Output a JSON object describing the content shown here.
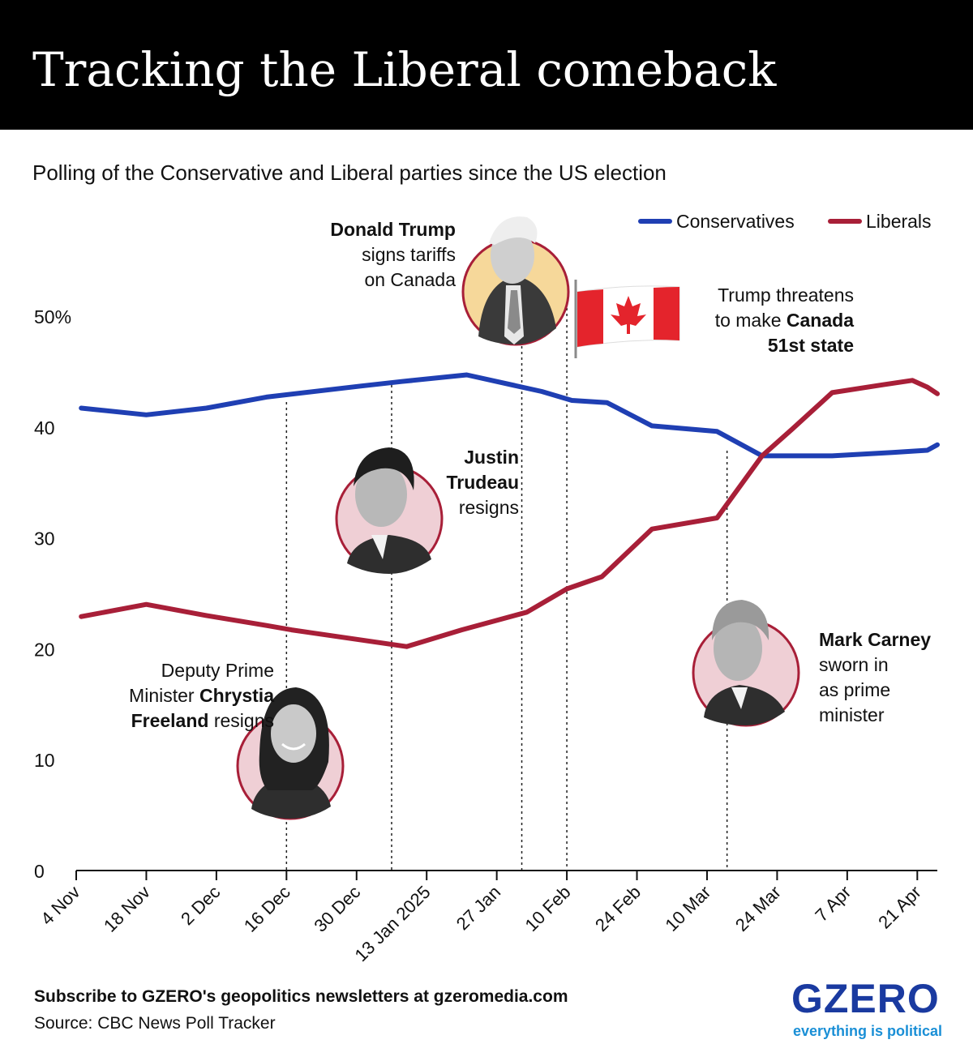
{
  "header": {
    "title": "Tracking the Liberal comeback",
    "subtitle": "Polling of the Conservative and Liberal parties since the US election"
  },
  "footer": {
    "subscribe": "Subscribe to GZERO's geopolitics newsletters at gzeromedia.com",
    "source": "Source: CBC News Poll Tracker"
  },
  "logo": {
    "word": "GZERO",
    "tagline": "everything is political"
  },
  "colors": {
    "conservatives": "#1f3fb3",
    "liberals": "#a81f38",
    "trump_circle": "#f6d89a",
    "pink_circle": "#efcfd5",
    "ring": "#a81f38"
  },
  "annotations": {
    "trump_tariffs": {
      "bold": "Donald Trump",
      "l2": "signs tariffs",
      "l3": "on Canada"
    },
    "trump_51st": {
      "l1": "Trump threatens",
      "l2a": "to make ",
      "l2b": "Canada",
      "l3": "51st state"
    },
    "trudeau": {
      "l1": "Justin",
      "l2": "Trudeau",
      "l3": "resigns"
    },
    "freeland": {
      "l1": "Deputy Prime",
      "l2a": "Minister ",
      "l2b": "Chrystia",
      "l3a": "Freeland",
      "l3b": " resigns"
    },
    "carney": {
      "bold": "Mark Carney",
      "l2": "sworn in",
      "l3": "as prime",
      "l4": "minister"
    }
  },
  "chart_data": {
    "type": "line",
    "x_axis": {
      "tick_labels": [
        "4 Nov",
        "18 Nov",
        "2 Dec",
        "16 Dec",
        "30 Dec",
        "13 Jan 2025",
        "27 Jan",
        "10 Feb",
        "24 Feb",
        "10 Mar",
        "24 Mar",
        "7 Apr",
        "21 Apr"
      ],
      "range": [
        "2024-11-04",
        "2025-04-25"
      ]
    },
    "y_axis": {
      "tick_labels": [
        "0",
        "10",
        "20",
        "30",
        "40",
        "50%"
      ],
      "tick_values": [
        0,
        10,
        20,
        30,
        40,
        50
      ],
      "range": [
        0,
        50
      ]
    },
    "legend": {
      "position": "top-right",
      "entries": [
        "Conservatives",
        "Liberals"
      ]
    },
    "series": [
      {
        "name": "Conservatives",
        "points": [
          [
            "2024-11-05",
            41.7
          ],
          [
            "2024-11-18",
            41.1
          ],
          [
            "2024-11-30",
            41.7
          ],
          [
            "2024-12-12",
            42.7
          ],
          [
            "2024-12-31",
            43.7
          ],
          [
            "2025-01-08",
            44.1
          ],
          [
            "2025-01-21",
            44.7
          ],
          [
            "2025-02-05",
            43.2
          ],
          [
            "2025-02-11",
            42.4
          ],
          [
            "2025-02-18",
            42.2
          ],
          [
            "2025-02-27",
            40.1
          ],
          [
            "2025-03-12",
            39.6
          ],
          [
            "2025-03-21",
            37.4
          ],
          [
            "2025-04-04",
            37.4
          ],
          [
            "2025-04-16",
            37.7
          ],
          [
            "2025-04-23",
            37.9
          ],
          [
            "2025-04-25",
            38.4
          ]
        ]
      },
      {
        "name": "Liberals",
        "points": [
          [
            "2024-11-05",
            22.9
          ],
          [
            "2024-11-18",
            24.0
          ],
          [
            "2024-11-30",
            23.0
          ],
          [
            "2024-12-12",
            22.1
          ],
          [
            "2024-12-17",
            21.7
          ],
          [
            "2025-01-09",
            20.2
          ],
          [
            "2025-01-20",
            21.7
          ],
          [
            "2025-02-02",
            23.3
          ],
          [
            "2025-02-10",
            25.4
          ],
          [
            "2025-02-17",
            26.5
          ],
          [
            "2025-02-27",
            30.8
          ],
          [
            "2025-03-12",
            31.8
          ],
          [
            "2025-03-21",
            37.4
          ],
          [
            "2025-03-27",
            39.8
          ],
          [
            "2025-04-04",
            43.1
          ],
          [
            "2025-04-14",
            43.8
          ],
          [
            "2025-04-20",
            44.2
          ],
          [
            "2025-04-23",
            43.6
          ],
          [
            "2025-04-25",
            43.0
          ]
        ]
      }
    ],
    "event_markers": [
      {
        "date": "2024-12-16",
        "label": "Deputy Prime Minister Chrystia Freeland resigns"
      },
      {
        "date": "2025-01-06",
        "label": "Justin Trudeau resigns"
      },
      {
        "date": "2025-02-01",
        "label": "Donald Trump signs tariffs on Canada"
      },
      {
        "date": "2025-02-10",
        "label": "Trump threatens to make Canada 51st state"
      },
      {
        "date": "2025-03-14",
        "label": "Mark Carney sworn in as prime minister"
      }
    ]
  }
}
